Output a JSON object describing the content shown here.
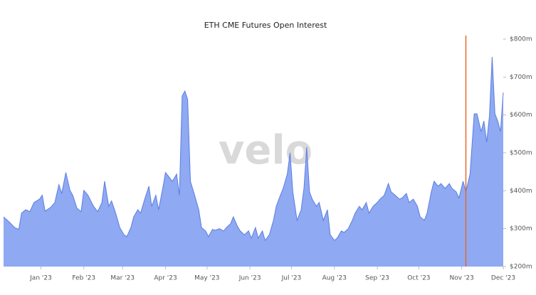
{
  "chart_data": {
    "type": "area",
    "title": "ETH CME Futures Open Interest",
    "watermark": "velo",
    "color": "#8fa9f2",
    "line_color": "#5b7de3",
    "x": [
      -27,
      -23,
      -19,
      -16,
      -14,
      -11,
      -8,
      -5,
      -1,
      1,
      3,
      7,
      10,
      13,
      15,
      18,
      21,
      23,
      26,
      29,
      31,
      34,
      38,
      41,
      44,
      46,
      49,
      51,
      54,
      57,
      60,
      62,
      65,
      67,
      70,
      72,
      75,
      78,
      80,
      83,
      85,
      88,
      90,
      93,
      95,
      98,
      100,
      102,
      104,
      106,
      108,
      111,
      114,
      116,
      119,
      121,
      124,
      126,
      129,
      132,
      134,
      137,
      139,
      142,
      144,
      147,
      150,
      152,
      155,
      157,
      160,
      162,
      165,
      168,
      170,
      173,
      175,
      178,
      180,
      182,
      185,
      188,
      190,
      192,
      194,
      196,
      199,
      201,
      204,
      207,
      209,
      212,
      214,
      217,
      219,
      222,
      225,
      227,
      230,
      232,
      235,
      237,
      240,
      243,
      245,
      248,
      251,
      253,
      256,
      259,
      261,
      264,
      266,
      269,
      272,
      274,
      277,
      279,
      282,
      284,
      287,
      289,
      292,
      295,
      297,
      300,
      302,
      305,
      307,
      310,
      313,
      315,
      318,
      320,
      322,
      324,
      326,
      328,
      330,
      332,
      334
    ],
    "values": [
      331,
      318,
      303,
      298,
      341,
      350,
      345,
      369,
      378,
      388,
      346,
      356,
      369,
      416,
      393,
      448,
      401,
      388,
      354,
      345,
      401,
      388,
      359,
      345,
      369,
      425,
      359,
      373,
      341,
      303,
      284,
      279,
      303,
      331,
      350,
      341,
      378,
      412,
      359,
      388,
      350,
      406,
      448,
      434,
      425,
      444,
      388,
      650,
      663,
      641,
      425,
      388,
      350,
      303,
      294,
      279,
      298,
      296,
      300,
      294,
      303,
      313,
      331,
      306,
      294,
      284,
      294,
      275,
      303,
      275,
      294,
      269,
      284,
      322,
      359,
      388,
      406,
      444,
      500,
      397,
      322,
      350,
      406,
      515,
      397,
      378,
      359,
      369,
      322,
      350,
      284,
      269,
      275,
      294,
      290,
      300,
      322,
      341,
      359,
      350,
      369,
      341,
      359,
      369,
      378,
      388,
      419,
      397,
      388,
      378,
      381,
      393,
      369,
      378,
      359,
      331,
      322,
      341,
      397,
      425,
      412,
      419,
      406,
      419,
      406,
      397,
      381,
      425,
      397,
      444,
      603,
      603,
      556,
      584,
      528,
      597,
      753,
      603,
      584,
      556,
      659
    ],
    "xlim": [
      -27,
      334
    ],
    "xticks": [
      {
        "value": 0,
        "label": "Jan '23"
      },
      {
        "value": 31,
        "label": "Feb '23"
      },
      {
        "value": 59,
        "label": "Mar '23"
      },
      {
        "value": 90,
        "label": "Apr '23"
      },
      {
        "value": 120,
        "label": "May '23"
      },
      {
        "value": 151,
        "label": "Jun '23"
      },
      {
        "value": 181,
        "label": "Jul '23"
      },
      {
        "value": 212,
        "label": "Aug '23"
      },
      {
        "value": 243,
        "label": "Sep '23"
      },
      {
        "value": 273,
        "label": "Oct '23"
      },
      {
        "value": 304,
        "label": "Nov '23"
      },
      {
        "value": 334,
        "label": "Dec '23"
      }
    ],
    "ylim": [
      200,
      800
    ],
    "yticks": [
      {
        "value": 200,
        "label": "$200m"
      },
      {
        "value": 300,
        "label": "$300m"
      },
      {
        "value": 400,
        "label": "$400m"
      },
      {
        "value": 500,
        "label": "$500m"
      },
      {
        "value": 600,
        "label": "$600m"
      },
      {
        "value": 700,
        "label": "$700m"
      },
      {
        "value": 800,
        "label": "$800m"
      }
    ],
    "vline": {
      "x": 307,
      "color": "#e8692c"
    },
    "grid": false
  }
}
